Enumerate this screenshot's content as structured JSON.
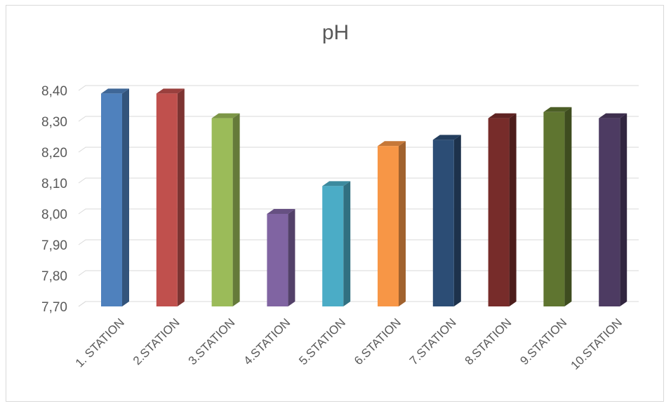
{
  "chart_data": {
    "type": "bar",
    "title": "pH",
    "xlabel": "",
    "ylabel": "",
    "ylim": [
      7.7,
      8.4
    ],
    "yticks": [
      "7,70",
      "7,80",
      "7,90",
      "8,00",
      "8,10",
      "8,20",
      "8,30",
      "8,40"
    ],
    "grid": true,
    "legend": "none",
    "style": "3d-column",
    "categories": [
      "1. STATION",
      "2.STATION",
      "3.STATION",
      "4.STATION",
      "5.STATION",
      "6.STATION",
      "7.STATION",
      "8.STATION",
      "9.STATION",
      "10.STATION"
    ],
    "values": [
      8.39,
      8.39,
      8.31,
      8.0,
      8.09,
      8.22,
      8.24,
      8.31,
      8.33,
      8.31
    ],
    "colors": [
      "#4f81bd",
      "#c0504d",
      "#9bbb59",
      "#8064a2",
      "#4bacc6",
      "#f79646",
      "#2c4d75",
      "#772c2a",
      "#5f7530",
      "#4d3b62"
    ]
  }
}
